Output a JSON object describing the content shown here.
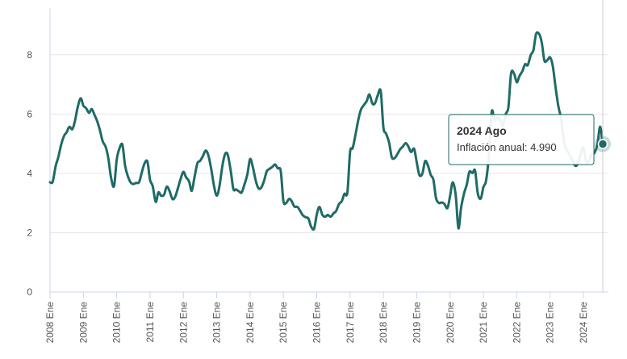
{
  "chart_data": {
    "type": "line",
    "title": "",
    "xlabel": "",
    "ylabel": "",
    "ylim": [
      0,
      9.3
    ],
    "yticks": [
      0,
      2,
      4,
      6,
      8
    ],
    "grid": true,
    "x_start_year": 2008,
    "x_end_year": 2024.75,
    "xticks": [
      {
        "x": 2008,
        "label": "2008 Ene"
      },
      {
        "x": 2009,
        "label": "2009 Ene"
      },
      {
        "x": 2010,
        "label": "2010 Ene"
      },
      {
        "x": 2011,
        "label": "2011 Ene"
      },
      {
        "x": 2012,
        "label": "2012 Ene"
      },
      {
        "x": 2013,
        "label": "2013 Ene"
      },
      {
        "x": 2014,
        "label": "2014 Ene"
      },
      {
        "x": 2015,
        "label": "2015 Ene"
      },
      {
        "x": 2016,
        "label": "2016 Ene"
      },
      {
        "x": 2017,
        "label": "2017 Ene"
      },
      {
        "x": 2018,
        "label": "2018 Ene"
      },
      {
        "x": 2019,
        "label": "2019 Ene"
      },
      {
        "x": 2020,
        "label": "2020 Ene"
      },
      {
        "x": 2021,
        "label": "2021 Ene"
      },
      {
        "x": 2022,
        "label": "2022 Ene"
      },
      {
        "x": 2023,
        "label": "2023 Ene"
      },
      {
        "x": 2024,
        "label": "2024 Ene"
      }
    ],
    "series": [
      {
        "name": "Inflación anual",
        "color": "#1f6b66",
        "points": [
          [
            2008.0,
            3.7
          ],
          [
            2008.08,
            3.72
          ],
          [
            2008.17,
            4.25
          ],
          [
            2008.25,
            4.55
          ],
          [
            2008.33,
            4.95
          ],
          [
            2008.42,
            5.26
          ],
          [
            2008.5,
            5.39
          ],
          [
            2008.58,
            5.57
          ],
          [
            2008.67,
            5.49
          ],
          [
            2008.75,
            5.78
          ],
          [
            2008.83,
            6.23
          ],
          [
            2008.92,
            6.53
          ],
          [
            2009.0,
            6.28
          ],
          [
            2009.08,
            6.2
          ],
          [
            2009.17,
            6.04
          ],
          [
            2009.25,
            6.17
          ],
          [
            2009.33,
            5.98
          ],
          [
            2009.42,
            5.74
          ],
          [
            2009.5,
            5.44
          ],
          [
            2009.58,
            5.08
          ],
          [
            2009.67,
            4.89
          ],
          [
            2009.75,
            4.5
          ],
          [
            2009.83,
            3.86
          ],
          [
            2009.92,
            3.57
          ],
          [
            2010.0,
            4.46
          ],
          [
            2010.08,
            4.83
          ],
          [
            2010.17,
            4.97
          ],
          [
            2010.25,
            4.27
          ],
          [
            2010.33,
            3.92
          ],
          [
            2010.42,
            3.69
          ],
          [
            2010.5,
            3.64
          ],
          [
            2010.58,
            3.68
          ],
          [
            2010.67,
            3.7
          ],
          [
            2010.75,
            4.02
          ],
          [
            2010.83,
            4.32
          ],
          [
            2010.92,
            4.4
          ],
          [
            2011.0,
            3.78
          ],
          [
            2011.08,
            3.57
          ],
          [
            2011.17,
            3.04
          ],
          [
            2011.25,
            3.36
          ],
          [
            2011.33,
            3.25
          ],
          [
            2011.42,
            3.28
          ],
          [
            2011.5,
            3.55
          ],
          [
            2011.58,
            3.42
          ],
          [
            2011.67,
            3.14
          ],
          [
            2011.75,
            3.2
          ],
          [
            2011.83,
            3.48
          ],
          [
            2011.92,
            3.82
          ],
          [
            2012.0,
            4.05
          ],
          [
            2012.08,
            3.87
          ],
          [
            2012.17,
            3.73
          ],
          [
            2012.25,
            3.41
          ],
          [
            2012.33,
            3.85
          ],
          [
            2012.42,
            4.34
          ],
          [
            2012.5,
            4.42
          ],
          [
            2012.58,
            4.57
          ],
          [
            2012.67,
            4.77
          ],
          [
            2012.75,
            4.6
          ],
          [
            2012.83,
            4.18
          ],
          [
            2012.92,
            3.57
          ],
          [
            2013.0,
            3.25
          ],
          [
            2013.08,
            3.55
          ],
          [
            2013.17,
            4.25
          ],
          [
            2013.25,
            4.65
          ],
          [
            2013.33,
            4.63
          ],
          [
            2013.42,
            4.09
          ],
          [
            2013.5,
            3.47
          ],
          [
            2013.58,
            3.46
          ],
          [
            2013.67,
            3.39
          ],
          [
            2013.75,
            3.36
          ],
          [
            2013.83,
            3.62
          ],
          [
            2013.92,
            3.97
          ],
          [
            2014.0,
            4.48
          ],
          [
            2014.08,
            4.23
          ],
          [
            2014.17,
            3.76
          ],
          [
            2014.25,
            3.5
          ],
          [
            2014.33,
            3.51
          ],
          [
            2014.42,
            3.75
          ],
          [
            2014.5,
            4.07
          ],
          [
            2014.58,
            4.15
          ],
          [
            2014.67,
            4.22
          ],
          [
            2014.75,
            4.3
          ],
          [
            2014.83,
            4.17
          ],
          [
            2014.92,
            4.08
          ],
          [
            2015.0,
            3.07
          ],
          [
            2015.08,
            3.0
          ],
          [
            2015.17,
            3.14
          ],
          [
            2015.25,
            3.06
          ],
          [
            2015.33,
            2.88
          ],
          [
            2015.42,
            2.87
          ],
          [
            2015.5,
            2.74
          ],
          [
            2015.58,
            2.59
          ],
          [
            2015.67,
            2.52
          ],
          [
            2015.75,
            2.48
          ],
          [
            2015.83,
            2.21
          ],
          [
            2015.92,
            2.13
          ],
          [
            2016.0,
            2.61
          ],
          [
            2016.08,
            2.87
          ],
          [
            2016.17,
            2.6
          ],
          [
            2016.25,
            2.54
          ],
          [
            2016.33,
            2.6
          ],
          [
            2016.42,
            2.54
          ],
          [
            2016.5,
            2.65
          ],
          [
            2016.58,
            2.73
          ],
          [
            2016.67,
            2.97
          ],
          [
            2016.75,
            3.06
          ],
          [
            2016.83,
            3.31
          ],
          [
            2016.92,
            3.36
          ],
          [
            2017.0,
            4.72
          ],
          [
            2017.08,
            4.86
          ],
          [
            2017.17,
            5.35
          ],
          [
            2017.25,
            5.82
          ],
          [
            2017.33,
            6.16
          ],
          [
            2017.42,
            6.31
          ],
          [
            2017.5,
            6.44
          ],
          [
            2017.58,
            6.66
          ],
          [
            2017.67,
            6.35
          ],
          [
            2017.75,
            6.37
          ],
          [
            2017.83,
            6.63
          ],
          [
            2017.92,
            6.77
          ],
          [
            2018.0,
            5.55
          ],
          [
            2018.08,
            5.34
          ],
          [
            2018.17,
            5.04
          ],
          [
            2018.25,
            4.55
          ],
          [
            2018.33,
            4.51
          ],
          [
            2018.42,
            4.65
          ],
          [
            2018.5,
            4.81
          ],
          [
            2018.58,
            4.9
          ],
          [
            2018.67,
            5.02
          ],
          [
            2018.75,
            4.9
          ],
          [
            2018.83,
            4.72
          ],
          [
            2018.92,
            4.83
          ],
          [
            2019.0,
            4.37
          ],
          [
            2019.08,
            3.94
          ],
          [
            2019.17,
            4.0
          ],
          [
            2019.25,
            4.41
          ],
          [
            2019.33,
            4.28
          ],
          [
            2019.42,
            3.95
          ],
          [
            2019.5,
            3.78
          ],
          [
            2019.58,
            3.16
          ],
          [
            2019.67,
            3.0
          ],
          [
            2019.75,
            3.02
          ],
          [
            2019.83,
            2.97
          ],
          [
            2019.92,
            2.83
          ],
          [
            2020.0,
            3.24
          ],
          [
            2020.08,
            3.7
          ],
          [
            2020.17,
            3.25
          ],
          [
            2020.25,
            2.15
          ],
          [
            2020.33,
            2.84
          ],
          [
            2020.42,
            3.33
          ],
          [
            2020.5,
            3.62
          ],
          [
            2020.58,
            4.05
          ],
          [
            2020.67,
            4.01
          ],
          [
            2020.75,
            4.09
          ],
          [
            2020.83,
            3.33
          ],
          [
            2020.92,
            3.15
          ],
          [
            2021.0,
            3.54
          ],
          [
            2021.08,
            3.76
          ],
          [
            2021.17,
            4.67
          ],
          [
            2021.25,
            6.08
          ],
          [
            2021.33,
            5.8
          ],
          [
            2021.42,
            5.88
          ],
          [
            2021.5,
            5.81
          ],
          [
            2021.58,
            5.59
          ],
          [
            2021.67,
            6.0
          ],
          [
            2021.75,
            6.24
          ],
          [
            2021.83,
            7.37
          ],
          [
            2021.92,
            7.36
          ],
          [
            2022.0,
            7.07
          ],
          [
            2022.08,
            7.28
          ],
          [
            2022.17,
            7.45
          ],
          [
            2022.25,
            7.68
          ],
          [
            2022.33,
            7.65
          ],
          [
            2022.42,
            7.99
          ],
          [
            2022.5,
            8.15
          ],
          [
            2022.58,
            8.7
          ],
          [
            2022.67,
            8.7
          ],
          [
            2022.75,
            8.41
          ],
          [
            2022.83,
            7.8
          ],
          [
            2022.92,
            7.82
          ],
          [
            2023.0,
            7.91
          ],
          [
            2023.08,
            7.62
          ],
          [
            2023.17,
            6.85
          ],
          [
            2023.25,
            6.25
          ],
          [
            2023.33,
            5.84
          ],
          [
            2023.42,
            5.06
          ],
          [
            2023.5,
            4.79
          ],
          [
            2023.58,
            4.64
          ],
          [
            2023.67,
            4.45
          ],
          [
            2023.75,
            4.26
          ],
          [
            2023.83,
            4.32
          ],
          [
            2023.92,
            4.66
          ],
          [
            2024.0,
            4.88
          ],
          [
            2024.08,
            4.4
          ],
          [
            2024.17,
            4.42
          ],
          [
            2024.25,
            4.65
          ],
          [
            2024.33,
            4.69
          ],
          [
            2024.42,
            4.98
          ],
          [
            2024.5,
            5.57
          ],
          [
            2024.58,
            4.99
          ]
        ]
      }
    ],
    "tooltip": {
      "title": "2024 Ago",
      "label": "Inflación anual: ",
      "value": "4.990",
      "x": 2024.58,
      "y": 4.99
    }
  }
}
